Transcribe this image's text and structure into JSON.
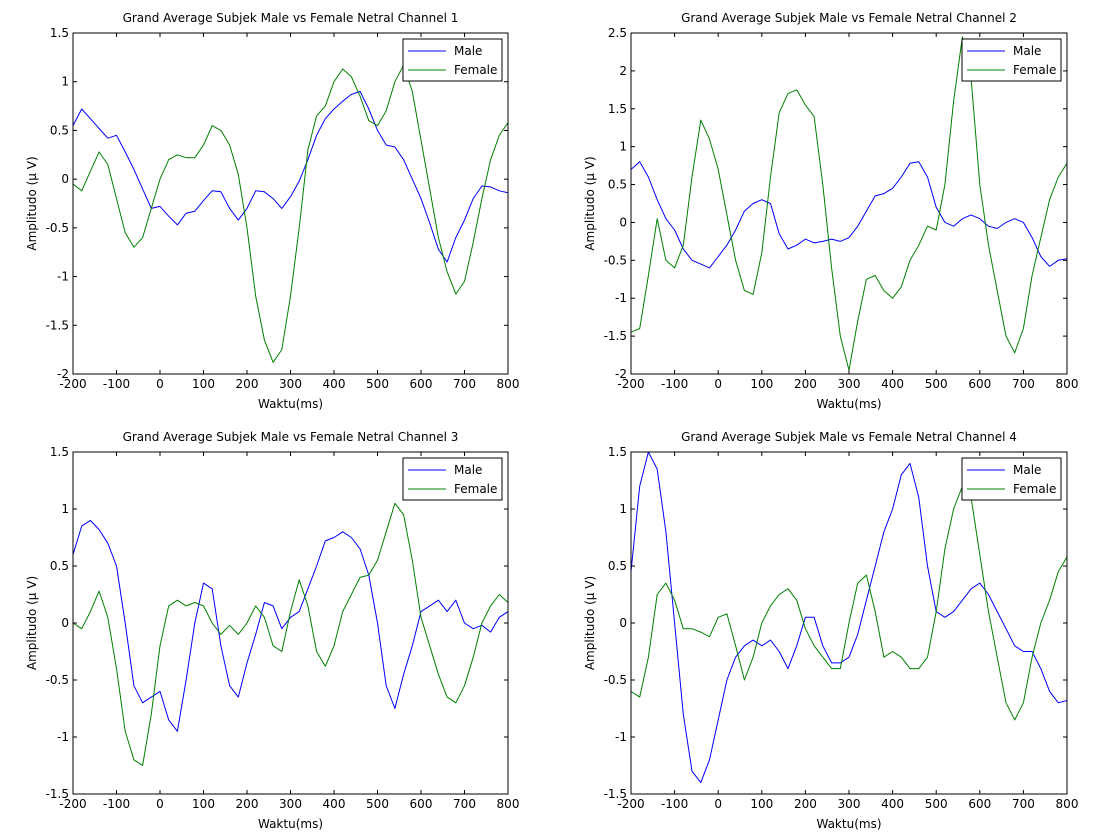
{
  "figure": {
    "background": "#ffffff",
    "line_colors": {
      "Male": "#0000ff",
      "Female": "#008000"
    }
  },
  "chart_data": [
    {
      "type": "line",
      "title": "Grand Average Subjek Male vs Female Netral Channel 1",
      "xlabel": "Waktu(ms)",
      "ylabel": "Amplitudo (µ V)",
      "xlim": [
        -200,
        800
      ],
      "ylim": [
        -2,
        1.5
      ],
      "xticks": [
        -200,
        -100,
        0,
        100,
        200,
        300,
        400,
        500,
        600,
        700,
        800
      ],
      "yticks": [
        -2,
        -1.5,
        -1,
        -0.5,
        0,
        0.5,
        1,
        1.5
      ],
      "xtick_labels": [
        "-200",
        "-100",
        "0",
        "100",
        "200",
        "300",
        "400",
        "500",
        "600",
        "700",
        "800"
      ],
      "ytick_labels": [
        "-2",
        "-1.5",
        "-1",
        "-0.5",
        "0",
        "0.5",
        "1",
        "1.5"
      ],
      "grid": false,
      "legend": "top-right",
      "series": [
        {
          "name": "Male",
          "x": [
            -200,
            -180,
            -160,
            -140,
            -120,
            -100,
            -80,
            -60,
            -40,
            -20,
            0,
            20,
            40,
            60,
            80,
            100,
            120,
            140,
            160,
            180,
            200,
            220,
            240,
            260,
            280,
            300,
            320,
            340,
            360,
            380,
            400,
            420,
            440,
            460,
            480,
            500,
            520,
            540,
            560,
            580,
            600,
            620,
            640,
            660,
            680,
            700,
            720,
            740,
            760,
            780,
            800
          ],
          "y": [
            0.55,
            0.72,
            0.62,
            0.52,
            0.42,
            0.45,
            0.28,
            0.1,
            -0.1,
            -0.3,
            -0.28,
            -0.38,
            -0.47,
            -0.35,
            -0.33,
            -0.22,
            -0.12,
            -0.13,
            -0.3,
            -0.42,
            -0.3,
            -0.12,
            -0.13,
            -0.2,
            -0.3,
            -0.18,
            -0.02,
            0.2,
            0.45,
            0.62,
            0.72,
            0.8,
            0.87,
            0.9,
            0.72,
            0.5,
            0.35,
            0.33,
            0.2,
            0.0,
            -0.2,
            -0.45,
            -0.72,
            -0.85,
            -0.6,
            -0.42,
            -0.2,
            -0.07,
            -0.08,
            -0.12,
            -0.14
          ]
        },
        {
          "name": "Female",
          "x": [
            -200,
            -180,
            -160,
            -140,
            -120,
            -100,
            -80,
            -60,
            -40,
            -20,
            0,
            20,
            40,
            60,
            80,
            100,
            120,
            140,
            160,
            180,
            200,
            220,
            240,
            260,
            280,
            300,
            320,
            340,
            360,
            380,
            400,
            420,
            440,
            460,
            480,
            500,
            520,
            540,
            560,
            580,
            600,
            620,
            640,
            660,
            680,
            700,
            720,
            740,
            760,
            780,
            800
          ],
          "y": [
            -0.05,
            -0.12,
            0.08,
            0.28,
            0.15,
            -0.2,
            -0.55,
            -0.7,
            -0.6,
            -0.3,
            0.0,
            0.2,
            0.25,
            0.22,
            0.22,
            0.35,
            0.55,
            0.5,
            0.35,
            0.05,
            -0.5,
            -1.2,
            -1.65,
            -1.88,
            -1.75,
            -1.2,
            -0.5,
            0.3,
            0.65,
            0.75,
            1.0,
            1.13,
            1.05,
            0.85,
            0.6,
            0.55,
            0.7,
            1.0,
            1.17,
            0.9,
            0.4,
            -0.1,
            -0.6,
            -0.95,
            -1.18,
            -1.05,
            -0.65,
            -0.2,
            0.2,
            0.45,
            0.58
          ]
        }
      ]
    },
    {
      "type": "line",
      "title": "Grand Average Subjek Male vs Female Netral Channel 2",
      "xlabel": "Waktu(ms)",
      "ylabel": "Amplitudo (µ V)",
      "xlim": [
        -200,
        800
      ],
      "ylim": [
        -2,
        2.5
      ],
      "xticks": [
        -200,
        -100,
        0,
        100,
        200,
        300,
        400,
        500,
        600,
        700,
        800
      ],
      "yticks": [
        -2,
        -1.5,
        -1,
        -0.5,
        0,
        0.5,
        1,
        1.5,
        2,
        2.5
      ],
      "xtick_labels": [
        "-200",
        "-100",
        "0",
        "100",
        "200",
        "300",
        "400",
        "500",
        "600",
        "700",
        "800"
      ],
      "ytick_labels": [
        "-2",
        "-1.5",
        "-1",
        "-0.5",
        "0",
        "0.5",
        "1",
        "1.5",
        "2",
        "2.5"
      ],
      "grid": false,
      "legend": "top-right",
      "series": [
        {
          "name": "Male",
          "x": [
            -200,
            -180,
            -160,
            -140,
            -120,
            -100,
            -80,
            -60,
            -40,
            -20,
            0,
            20,
            40,
            60,
            80,
            100,
            120,
            140,
            160,
            180,
            200,
            220,
            240,
            260,
            280,
            300,
            320,
            340,
            360,
            380,
            400,
            420,
            440,
            460,
            480,
            500,
            520,
            540,
            560,
            580,
            600,
            620,
            640,
            660,
            680,
            700,
            720,
            740,
            760,
            780,
            800
          ],
          "y": [
            0.7,
            0.8,
            0.6,
            0.3,
            0.05,
            -0.1,
            -0.35,
            -0.5,
            -0.55,
            -0.6,
            -0.45,
            -0.3,
            -0.1,
            0.15,
            0.25,
            0.3,
            0.25,
            -0.15,
            -0.35,
            -0.3,
            -0.22,
            -0.27,
            -0.25,
            -0.22,
            -0.25,
            -0.2,
            -0.05,
            0.15,
            0.35,
            0.38,
            0.45,
            0.6,
            0.78,
            0.8,
            0.6,
            0.2,
            0.0,
            -0.05,
            0.05,
            0.1,
            0.05,
            -0.05,
            -0.08,
            0.0,
            0.05,
            0.0,
            -0.2,
            -0.45,
            -0.58,
            -0.5,
            -0.48
          ]
        },
        {
          "name": "Female",
          "x": [
            -200,
            -180,
            -160,
            -140,
            -120,
            -100,
            -80,
            -60,
            -40,
            -20,
            0,
            20,
            40,
            60,
            80,
            100,
            120,
            140,
            160,
            180,
            200,
            220,
            240,
            260,
            280,
            300,
            320,
            340,
            360,
            380,
            400,
            420,
            440,
            460,
            480,
            500,
            520,
            540,
            560,
            580,
            600,
            620,
            640,
            660,
            680,
            700,
            720,
            740,
            760,
            780,
            800
          ],
          "y": [
            -1.45,
            -1.4,
            -0.7,
            0.05,
            -0.5,
            -0.6,
            -0.3,
            0.6,
            1.35,
            1.1,
            0.7,
            0.1,
            -0.5,
            -0.9,
            -0.95,
            -0.4,
            0.6,
            1.45,
            1.7,
            1.75,
            1.55,
            1.4,
            0.5,
            -0.6,
            -1.5,
            -1.95,
            -1.3,
            -0.75,
            -0.7,
            -0.9,
            -1.0,
            -0.85,
            -0.5,
            -0.3,
            -0.05,
            -0.1,
            0.5,
            1.6,
            2.45,
            1.9,
            0.5,
            -0.3,
            -0.9,
            -1.5,
            -1.72,
            -1.4,
            -0.7,
            -0.2,
            0.3,
            0.6,
            0.78
          ]
        }
      ]
    },
    {
      "type": "line",
      "title": "Grand Average Subjek Male vs Female Netral Channel 3",
      "xlabel": "Waktu(ms)",
      "ylabel": "Amplitudo (µ V)",
      "xlim": [
        -200,
        800
      ],
      "ylim": [
        -1.5,
        1.5
      ],
      "xticks": [
        -200,
        -100,
        0,
        100,
        200,
        300,
        400,
        500,
        600,
        700,
        800
      ],
      "yticks": [
        -1.5,
        -1,
        -0.5,
        0,
        0.5,
        1,
        1.5
      ],
      "xtick_labels": [
        "-200",
        "-100",
        "0",
        "100",
        "200",
        "300",
        "400",
        "500",
        "600",
        "700",
        "800"
      ],
      "ytick_labels": [
        "-1.5",
        "-1",
        "-0.5",
        "0",
        "0.5",
        "1",
        "1.5"
      ],
      "grid": false,
      "legend": "top-right",
      "series": [
        {
          "name": "Male",
          "x": [
            -200,
            -180,
            -160,
            -140,
            -120,
            -100,
            -80,
            -60,
            -40,
            -20,
            0,
            20,
            40,
            60,
            80,
            100,
            120,
            140,
            160,
            180,
            200,
            220,
            240,
            260,
            280,
            300,
            320,
            340,
            360,
            380,
            400,
            420,
            440,
            460,
            480,
            500,
            520,
            540,
            560,
            580,
            600,
            620,
            640,
            660,
            680,
            700,
            720,
            740,
            760,
            780,
            800
          ],
          "y": [
            0.6,
            0.85,
            0.9,
            0.82,
            0.7,
            0.5,
            0.0,
            -0.55,
            -0.7,
            -0.65,
            -0.6,
            -0.85,
            -0.95,
            -0.5,
            0.0,
            0.35,
            0.3,
            -0.2,
            -0.55,
            -0.65,
            -0.35,
            -0.1,
            0.18,
            0.15,
            -0.05,
            0.05,
            0.1,
            0.3,
            0.5,
            0.72,
            0.75,
            0.8,
            0.75,
            0.65,
            0.42,
            0.0,
            -0.55,
            -0.75,
            -0.45,
            -0.2,
            0.1,
            0.15,
            0.2,
            0.1,
            0.2,
            0.0,
            -0.05,
            -0.02,
            -0.08,
            0.05,
            0.1
          ]
        },
        {
          "name": "Female",
          "x": [
            -200,
            -180,
            -160,
            -140,
            -120,
            -100,
            -80,
            -60,
            -40,
            -20,
            0,
            20,
            40,
            60,
            80,
            100,
            120,
            140,
            160,
            180,
            200,
            220,
            240,
            260,
            280,
            300,
            320,
            340,
            360,
            380,
            400,
            420,
            440,
            460,
            480,
            500,
            520,
            540,
            560,
            580,
            600,
            620,
            640,
            660,
            680,
            700,
            720,
            740,
            760,
            780,
            800
          ],
          "y": [
            0.0,
            -0.05,
            0.1,
            0.28,
            0.05,
            -0.4,
            -0.95,
            -1.2,
            -1.25,
            -0.8,
            -0.2,
            0.15,
            0.2,
            0.15,
            0.18,
            0.15,
            0.0,
            -0.1,
            -0.02,
            -0.1,
            0.0,
            0.15,
            0.05,
            -0.2,
            -0.25,
            0.1,
            0.38,
            0.15,
            -0.25,
            -0.38,
            -0.2,
            0.1,
            0.25,
            0.4,
            0.42,
            0.55,
            0.8,
            1.05,
            0.95,
            0.55,
            0.05,
            -0.2,
            -0.45,
            -0.65,
            -0.7,
            -0.55,
            -0.3,
            0.0,
            0.15,
            0.25,
            0.18
          ]
        }
      ]
    },
    {
      "type": "line",
      "title": "Grand Average Subjek Male vs Female Netral Channel 4",
      "xlabel": "Waktu(ms)",
      "ylabel": "Amplitudo (µ V)",
      "xlim": [
        -200,
        800
      ],
      "ylim": [
        -1.5,
        1.5
      ],
      "xticks": [
        -200,
        -100,
        0,
        100,
        200,
        300,
        400,
        500,
        600,
        700,
        800
      ],
      "yticks": [
        -1.5,
        -1,
        -0.5,
        0,
        0.5,
        1,
        1.5
      ],
      "xtick_labels": [
        "-200",
        "-100",
        "0",
        "100",
        "200",
        "300",
        "400",
        "500",
        "600",
        "700",
        "800"
      ],
      "ytick_labels": [
        "-1.5",
        "-1",
        "-0.5",
        "0",
        "0.5",
        "1",
        "1.5"
      ],
      "grid": false,
      "legend": "top-right",
      "series": [
        {
          "name": "Male",
          "x": [
            -200,
            -180,
            -160,
            -140,
            -120,
            -100,
            -80,
            -60,
            -40,
            -20,
            0,
            20,
            40,
            60,
            80,
            100,
            120,
            140,
            160,
            180,
            200,
            220,
            240,
            260,
            280,
            300,
            320,
            340,
            360,
            380,
            400,
            420,
            440,
            460,
            480,
            500,
            520,
            540,
            560,
            580,
            600,
            620,
            640,
            660,
            680,
            700,
            720,
            740,
            760,
            780,
            800
          ],
          "y": [
            0.45,
            1.2,
            1.5,
            1.35,
            0.8,
            0.0,
            -0.8,
            -1.3,
            -1.4,
            -1.2,
            -0.85,
            -0.5,
            -0.3,
            -0.2,
            -0.15,
            -0.2,
            -0.15,
            -0.25,
            -0.4,
            -0.2,
            0.05,
            0.05,
            -0.2,
            -0.35,
            -0.35,
            -0.3,
            -0.1,
            0.2,
            0.5,
            0.8,
            1.0,
            1.3,
            1.4,
            1.1,
            0.5,
            0.1,
            0.05,
            0.1,
            0.2,
            0.3,
            0.35,
            0.25,
            0.1,
            -0.05,
            -0.2,
            -0.25,
            -0.25,
            -0.4,
            -0.6,
            -0.7,
            -0.68
          ]
        },
        {
          "name": "Female",
          "x": [
            -200,
            -180,
            -160,
            -140,
            -120,
            -100,
            -80,
            -60,
            -40,
            -20,
            0,
            20,
            40,
            60,
            80,
            100,
            120,
            140,
            160,
            180,
            200,
            220,
            240,
            260,
            280,
            300,
            320,
            340,
            360,
            380,
            400,
            420,
            440,
            460,
            480,
            500,
            520,
            540,
            560,
            580,
            600,
            620,
            640,
            660,
            680,
            700,
            720,
            740,
            760,
            780,
            800
          ],
          "y": [
            -0.6,
            -0.65,
            -0.3,
            0.25,
            0.35,
            0.2,
            -0.05,
            -0.05,
            -0.08,
            -0.12,
            0.05,
            0.08,
            -0.2,
            -0.5,
            -0.3,
            0.0,
            0.15,
            0.25,
            0.3,
            0.2,
            -0.05,
            -0.2,
            -0.3,
            -0.4,
            -0.4,
            0.0,
            0.35,
            0.42,
            0.1,
            -0.3,
            -0.25,
            -0.3,
            -0.4,
            -0.4,
            -0.3,
            0.1,
            0.65,
            1.0,
            1.2,
            1.1,
            0.6,
            0.1,
            -0.3,
            -0.7,
            -0.85,
            -0.7,
            -0.3,
            0.0,
            0.2,
            0.45,
            0.58
          ]
        }
      ]
    }
  ]
}
